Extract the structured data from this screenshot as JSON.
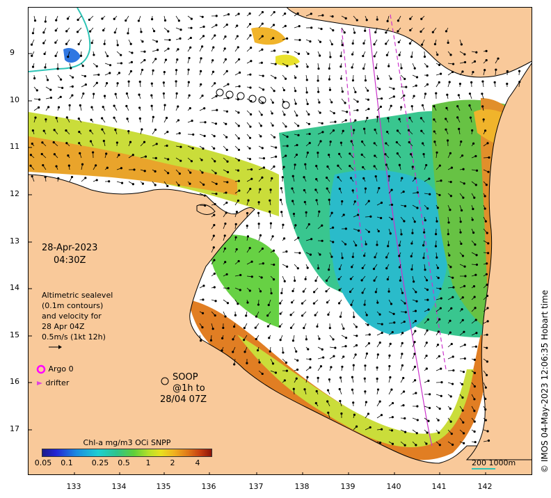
{
  "map": {
    "lat_ticks": [
      "9",
      "10",
      "11",
      "12",
      "13",
      "14",
      "15",
      "16",
      "17"
    ],
    "lon_ticks": [
      "133",
      "134",
      "135",
      "136",
      "137",
      "138",
      "139",
      "140",
      "141",
      "142"
    ],
    "date_line1": "28-Apr-2023",
    "date_line2": "04:30Z",
    "altimetry_lines": [
      "Altimetric sealevel",
      "(0.1m contours)",
      "and velocity for",
      "28 Apr 04Z",
      "0.5m/s (1kt 12h)"
    ],
    "argo_label": "Argo 0",
    "drifter_label": "drifter",
    "soop_line1": "SOOP @1h to",
    "soop_line2": "28/04 07Z",
    "colorbar_title": "Chl-a mg/m3 OCi SNPP",
    "colorbar_ticks": [
      "0.05",
      "0.1",
      "0.25",
      "0.5",
      "1",
      "2",
      "4"
    ],
    "scale_label": "200  1000m",
    "credit": "© IMOS 04-May-2023 12:06:35 Hobart time",
    "colors": {
      "land": "#f9c99a",
      "argo": "#ff00ff",
      "drifter": "#e040e0",
      "soop_track": "#cc33cc",
      "shelf_contour": "#2ec4b6"
    }
  }
}
